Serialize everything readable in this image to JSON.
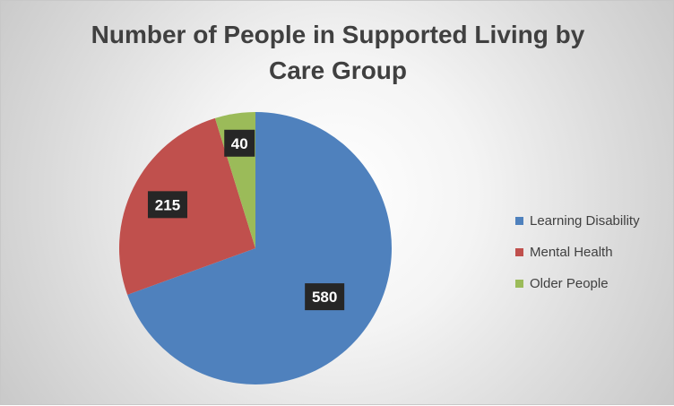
{
  "chart_data": {
    "type": "pie",
    "title_lines": [
      "Number of People in Supported Living by",
      "Care Group"
    ],
    "categories": [
      "Learning Disability",
      "Mental Health",
      "Older People"
    ],
    "values": [
      580,
      215,
      40
    ],
    "colors": [
      "#4f81bd",
      "#c0504d",
      "#9bbb59"
    ],
    "data_labels": [
      "580",
      "215",
      "40"
    ],
    "legend_position": "right",
    "start_angle_deg": 0,
    "direction": "clockwise"
  }
}
